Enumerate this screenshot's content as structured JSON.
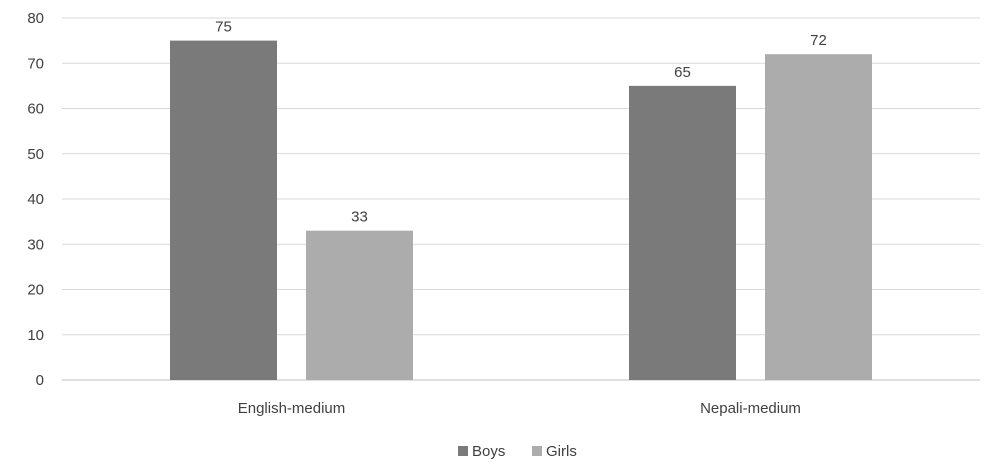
{
  "chart_data": {
    "type": "bar",
    "categories": [
      "English-medium",
      "Nepali-medium"
    ],
    "series": [
      {
        "name": "Boys",
        "values": [
          75,
          65
        ],
        "color": "#7a7a7a"
      },
      {
        "name": "Girls",
        "values": [
          33,
          72
        ],
        "color": "#acacac"
      }
    ],
    "ylim": [
      0,
      80
    ],
    "yticks": [
      "0",
      "10",
      "20",
      "30",
      "40",
      "50",
      "60",
      "70",
      "80"
    ],
    "data_labels": [
      [
        "75",
        "65"
      ],
      [
        "33",
        "72"
      ]
    ],
    "grid": true,
    "legend": "bottom-center",
    "gridline_color": "#d9d9d9",
    "axis_color": "#bfbfbf"
  }
}
